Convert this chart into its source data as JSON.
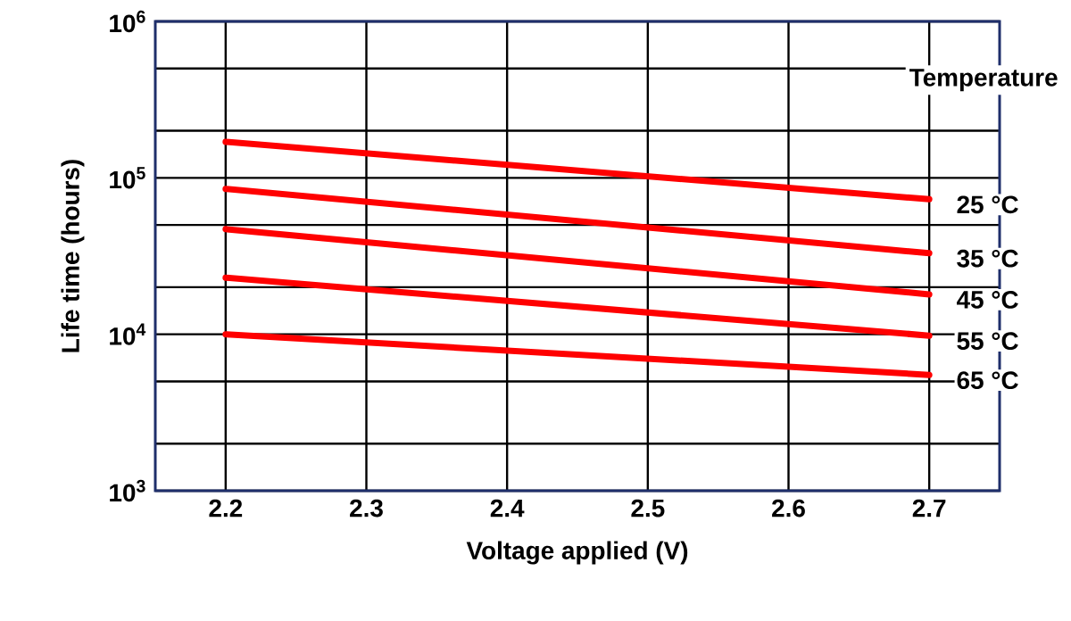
{
  "chart_data": {
    "type": "line",
    "xlabel": "Voltage applied (V)",
    "ylabel": "Life time (hours)",
    "legend_title": "Temperature",
    "x": [
      2.2,
      2.7
    ],
    "series": [
      {
        "name": "25 °C",
        "color": "#ff0000",
        "values": [
          170000,
          73000
        ]
      },
      {
        "name": "35 °C",
        "color": "#ff0000",
        "values": [
          85000,
          33000
        ]
      },
      {
        "name": "45 °C",
        "color": "#ff0000",
        "values": [
          47000,
          18000
        ]
      },
      {
        "name": "55 °C",
        "color": "#ff0000",
        "values": [
          23000,
          9800
        ]
      },
      {
        "name": "65 °C",
        "color": "#ff0000",
        "values": [
          10000,
          5500
        ]
      }
    ],
    "xlim": [
      2.15,
      2.75
    ],
    "xticks": [
      2.2,
      2.3,
      2.4,
      2.5,
      2.6,
      2.7
    ],
    "ylim": [
      1000,
      1000000
    ],
    "yticks": [
      {
        "value": 1000,
        "label": "10$^{3}$"
      },
      {
        "value": 2000,
        "label": null
      },
      {
        "value": 5000,
        "label": null
      },
      {
        "value": 10000,
        "label": "10$^{4}$"
      },
      {
        "value": 20000,
        "label": null
      },
      {
        "value": 50000,
        "label": null
      },
      {
        "value": 100000,
        "label": "10$^{5}$"
      },
      {
        "value": 200000,
        "label": null
      },
      {
        "value": 500000,
        "label": null
      },
      {
        "value": 1000000,
        "label": "10$^{6}$"
      }
    ],
    "log": "y",
    "grid": true,
    "line_style": "solid",
    "marker": "none"
  }
}
